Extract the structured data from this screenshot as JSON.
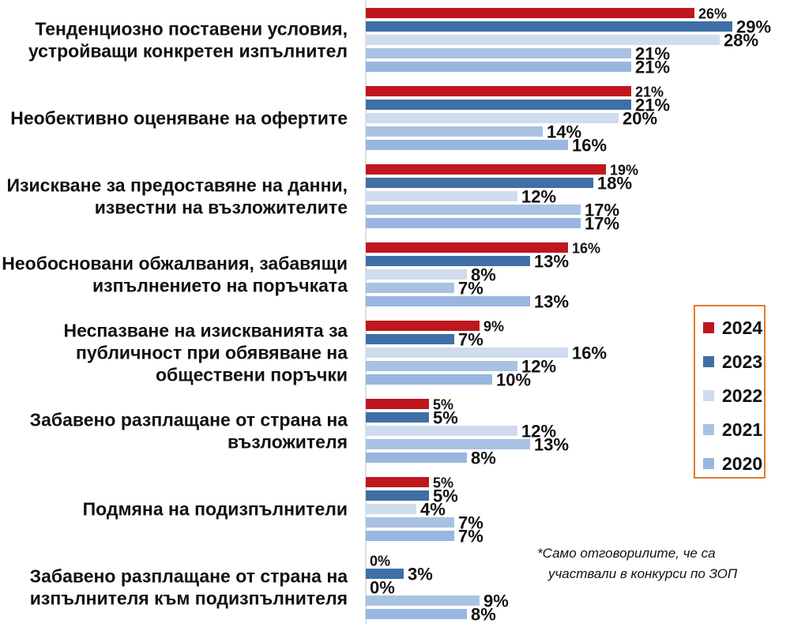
{
  "chart_data": {
    "type": "bar",
    "orientation": "horizontal",
    "categories": [
      [
        "Тенденциозно поставени условия,",
        "устройващи конкретен изпълнител"
      ],
      [
        "Необективно оценяване на офертите"
      ],
      [
        "Изискване за предоставяне на данни,",
        "известни на възложителите"
      ],
      [
        "Необосновани обжалвания, забавящи",
        "изпълнението на поръчката"
      ],
      [
        "Неспазване на изискванията за",
        "публичност при обявяване на",
        "обществени поръчки"
      ],
      [
        "Забавено разплащане от страна на",
        "възложителя"
      ],
      [
        "Подмяна на подизпълнители"
      ],
      [
        "Забавено разплащане от страна на",
        "изпълнителя към подизпълнителя"
      ]
    ],
    "series": [
      {
        "name": "2024",
        "color": "#c0161e",
        "values": [
          26,
          21,
          19,
          16,
          9,
          5,
          5,
          0
        ]
      },
      {
        "name": "2023",
        "color": "#3f6fa5",
        "values": [
          29,
          21,
          18,
          13,
          7,
          5,
          5,
          3
        ]
      },
      {
        "name": "2022",
        "color": "#cfdcee",
        "values": [
          28,
          20,
          12,
          8,
          16,
          12,
          4,
          0
        ]
      },
      {
        "name": "2021",
        "color": "#a9c2e3",
        "values": [
          21,
          14,
          17,
          7,
          12,
          13,
          7,
          9
        ]
      },
      {
        "name": "2020",
        "color": "#98b6df",
        "values": [
          21,
          16,
          17,
          13,
          10,
          8,
          7,
          8
        ]
      }
    ],
    "value_suffix": "%",
    "highlight_series": "2024",
    "highlight_label_color": "#c0161e",
    "legend_position": "right",
    "legend_border_color": "#e07b2a",
    "grid": false
  },
  "note": {
    "line1": "*Само отговорилите, че са",
    "line2": "участвали в конкурси по ЗОП"
  }
}
